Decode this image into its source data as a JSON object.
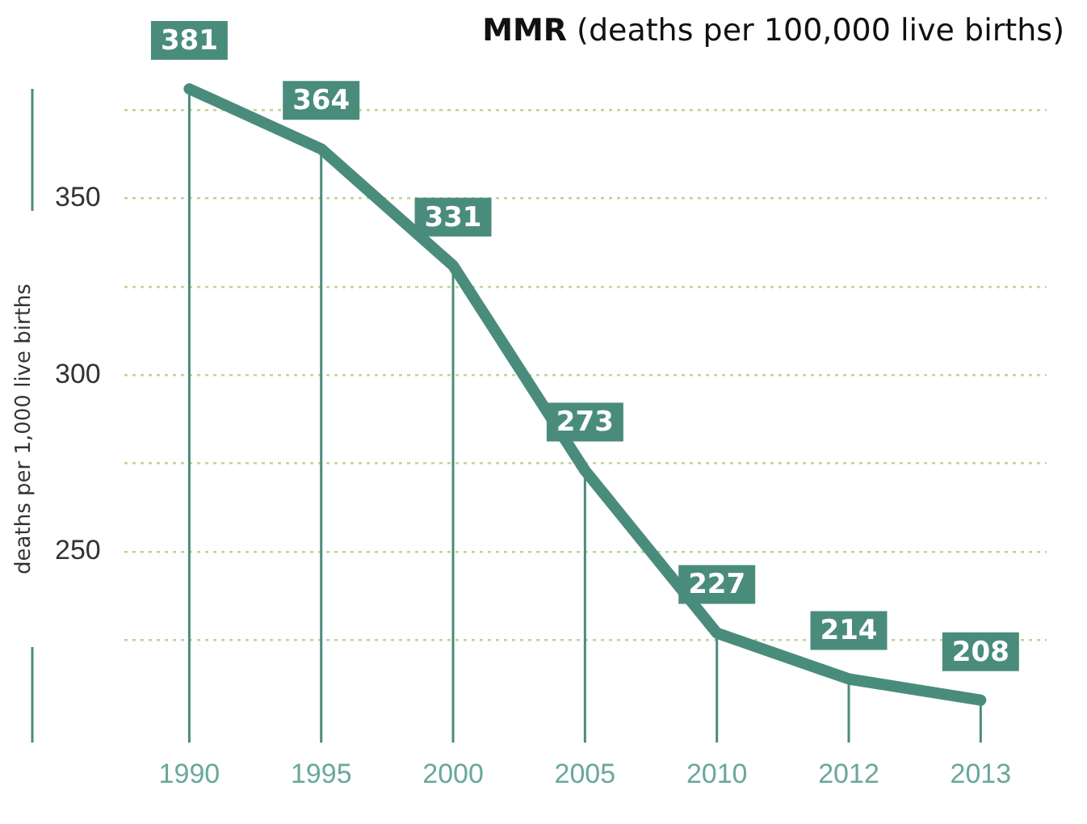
{
  "chart_data": {
    "type": "line",
    "title": "MMR (deaths per 100,000 live births)",
    "ylabel": "deaths per 1,000 live births",
    "categories": [
      "1990",
      "1995",
      "2000",
      "2005",
      "2010",
      "2012",
      "2013"
    ],
    "series": [
      {
        "color": "#4a8c7c",
        "values": [
          381,
          364,
          331,
          273,
          227,
          214,
          208
        ]
      }
    ],
    "ylim": [
      196,
      381
    ],
    "yticks": [
      {
        "value": 225,
        "label": null
      },
      250,
      {
        "value": 275,
        "label": null
      },
      300,
      {
        "value": 325,
        "label": null
      },
      350,
      {
        "value": 375,
        "label": null
      }
    ],
    "grid": true,
    "legend": false,
    "marker": "none",
    "line_style": "solid",
    "data_labels": true
  }
}
